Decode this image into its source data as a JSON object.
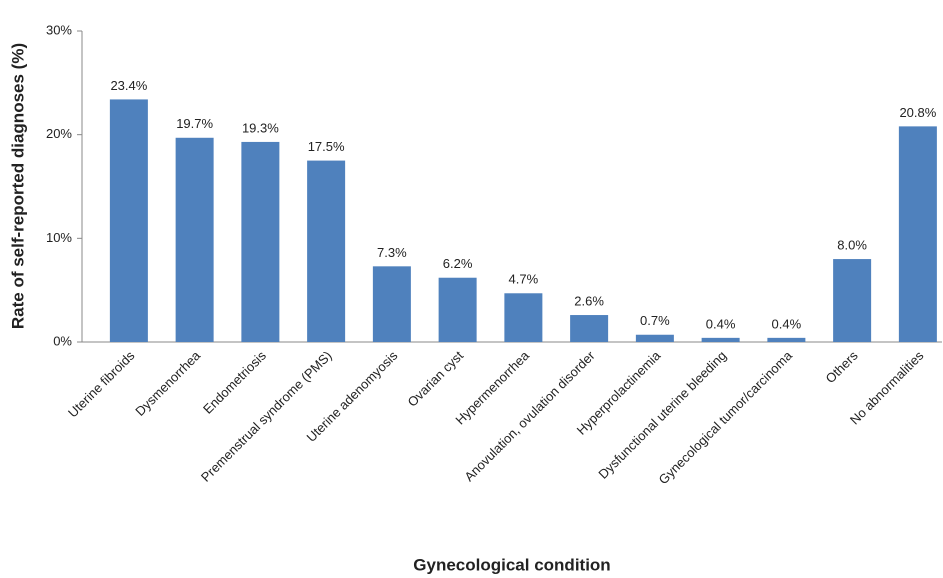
{
  "chart_data": {
    "type": "bar",
    "x_label": "Gynecological condition",
    "y_label": "Rate of self-reported diagnoses (%)",
    "categories": [
      "Uterine fibroids",
      "Dysmenorrhea",
      "Endometriosis",
      "Premenstrual syndrome (PMS)",
      "Uterine adenomyosis",
      "Ovarian cyst",
      "Hypermenorrhea",
      "Anovulation, ovulation disorder",
      "Hyperprolactinemia",
      "Dysfunctional uterine bleeding",
      "Gynecological tumor/carcinoma",
      "Others",
      "No abnormalities"
    ],
    "values": [
      23.4,
      19.7,
      19.3,
      17.5,
      7.3,
      6.2,
      4.7,
      2.6,
      0.7,
      0.4,
      0.4,
      8.0,
      20.8
    ],
    "value_labels": [
      "23.4%",
      "19.7%",
      "19.3%",
      "17.5%",
      "7.3%",
      "6.2%",
      "4.7%",
      "2.6%",
      "0.7%",
      "0.4%",
      "0.4%",
      "8.0%",
      "20.8%"
    ],
    "color": "#4f81bd",
    "ylim": [
      0,
      30
    ],
    "yticks": [
      {
        "value": 0,
        "label": "0%"
      },
      {
        "value": 10,
        "label": "10%"
      },
      {
        "value": 20,
        "label": "20%"
      },
      {
        "value": 30,
        "label": "30%"
      }
    ],
    "grid": false
  }
}
